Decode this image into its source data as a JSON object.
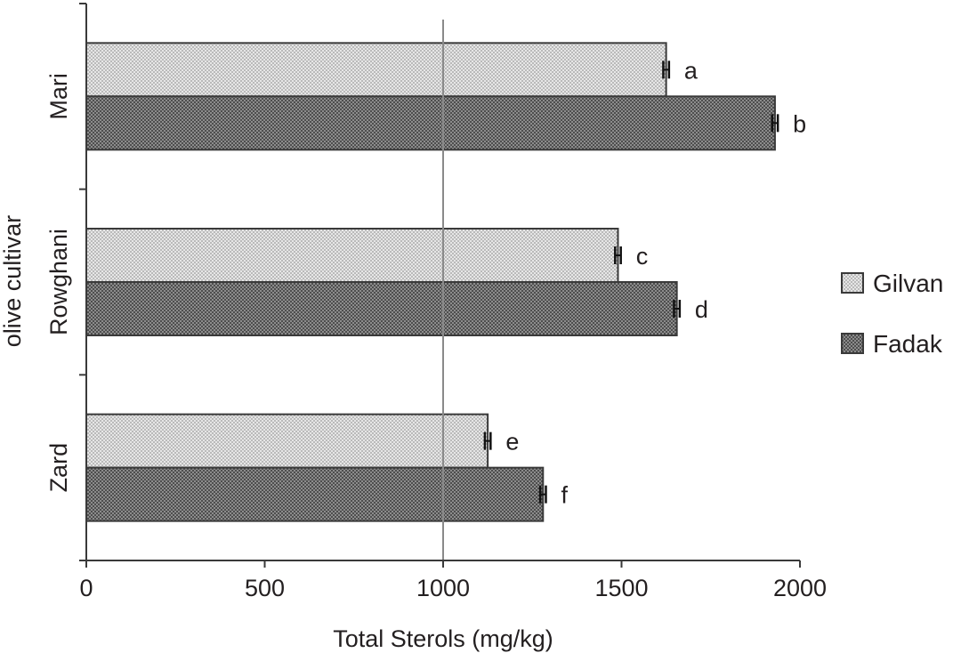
{
  "chart_data": {
    "type": "bar",
    "orientation": "horizontal",
    "title": "",
    "xlabel": "Total Sterols (mg/kg)",
    "ylabel": "olive cultivar",
    "xlim": [
      0,
      2000
    ],
    "xticks": [
      0,
      500,
      1000,
      1500,
      2000
    ],
    "categories": [
      "Mari",
      "Rowghani",
      "Zard"
    ],
    "series": [
      {
        "name": "Gilvan",
        "values": [
          1625,
          1490,
          1125
        ],
        "errors": [
          8,
          8,
          8
        ],
        "labels": [
          "a",
          "c",
          "e"
        ],
        "color": "#d9d9d9"
      },
      {
        "name": "Fadak",
        "values": [
          1930,
          1655,
          1280
        ],
        "errors": [
          8,
          8,
          8
        ],
        "labels": [
          "b",
          "d",
          "f"
        ],
        "color": "#7f7f7f"
      }
    ],
    "reference_line": 1000,
    "grid": false,
    "legend_position": "right"
  }
}
